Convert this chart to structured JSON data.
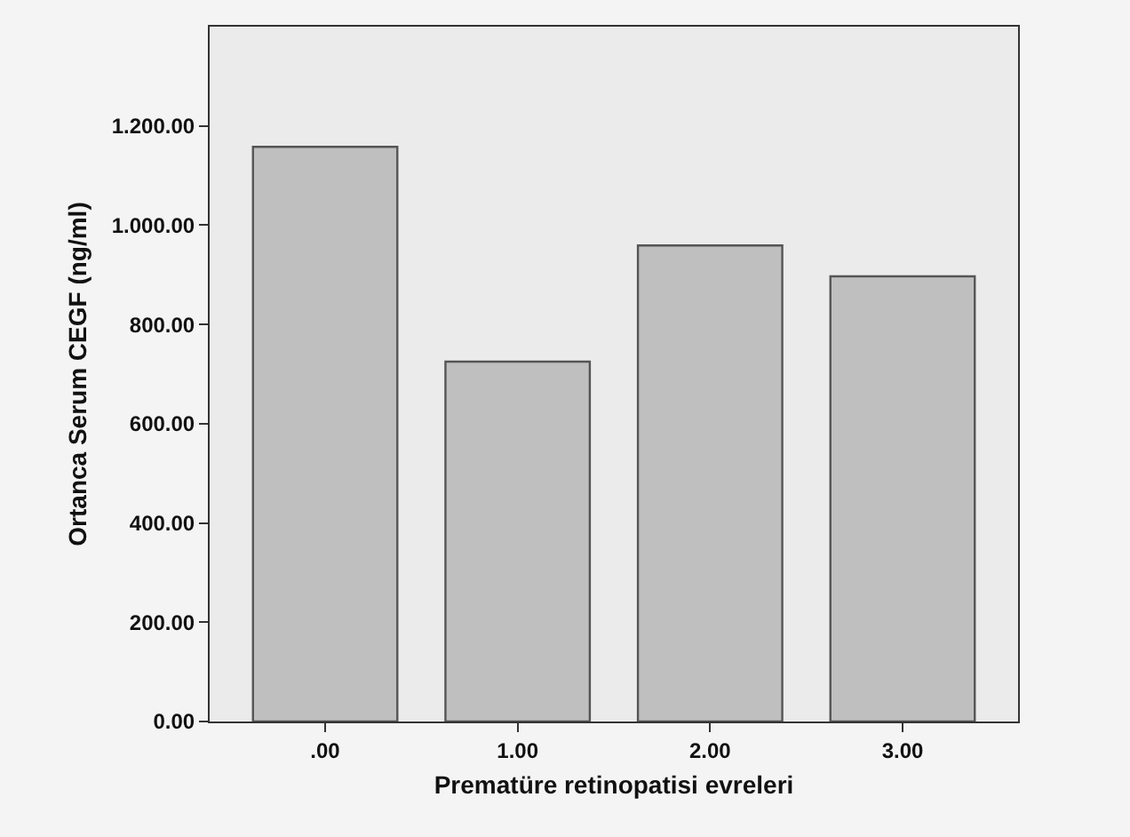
{
  "chart_data": {
    "type": "bar",
    "xlabel": "Prematüre retinopatisi evreleri",
    "ylabel": "Ortanca Serum CEGF (ng/ml)",
    "categories": [
      ".00",
      "1.00",
      "2.00",
      "3.00"
    ],
    "values": [
      1158,
      725,
      959,
      897
    ],
    "color": "#bfbfbf",
    "ylim": [
      0,
      1400
    ],
    "yticks": [
      {
        "value": 0,
        "label": "0.00"
      },
      {
        "value": 200,
        "label": "200.00"
      },
      {
        "value": 400,
        "label": "400.00"
      },
      {
        "value": 600,
        "label": "600.00"
      },
      {
        "value": 800,
        "label": "800.00"
      },
      {
        "value": 1000,
        "label": "1.000.00"
      },
      {
        "value": 1200,
        "label": "1.200.00"
      }
    ],
    "grid": false
  }
}
